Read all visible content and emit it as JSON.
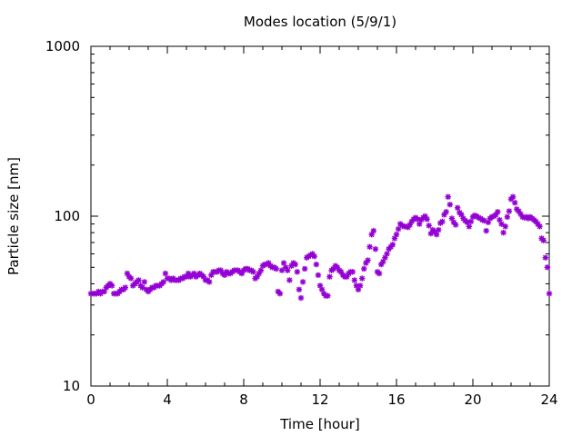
{
  "chart_data": {
    "type": "scatter",
    "title": "Modes location (5/9/1)",
    "xlabel": "Time [hour]",
    "ylabel": "Particle size [nm]",
    "xlim": [
      0,
      24
    ],
    "ylim": [
      10,
      1000
    ],
    "yscale": "log",
    "xticks": [
      0,
      4,
      8,
      12,
      16,
      20,
      24
    ],
    "xtick_labels": [
      "0",
      "4",
      "8",
      "12",
      "16",
      "20",
      "24"
    ],
    "yticks": [
      10,
      100,
      1000
    ],
    "ytick_labels": [
      "10",
      "100",
      "1000"
    ],
    "grid": false,
    "legend": "none",
    "marker_color": "#9400d3",
    "marker": "asterisk",
    "series": [
      {
        "points": [
          [
            0.0,
            35
          ],
          [
            0.1,
            35
          ],
          [
            0.2,
            35
          ],
          [
            0.3,
            35
          ],
          [
            0.4,
            36
          ],
          [
            0.5,
            35
          ],
          [
            0.6,
            36
          ],
          [
            0.7,
            36
          ],
          [
            0.8,
            38
          ],
          [
            0.9,
            39
          ],
          [
            1.0,
            40
          ],
          [
            1.1,
            39
          ],
          [
            1.2,
            35
          ],
          [
            1.3,
            35
          ],
          [
            1.4,
            35
          ],
          [
            1.5,
            36
          ],
          [
            1.6,
            37
          ],
          [
            1.7,
            37
          ],
          [
            1.8,
            38
          ],
          [
            1.9,
            46
          ],
          [
            2.0,
            44
          ],
          [
            2.1,
            43
          ],
          [
            2.2,
            39
          ],
          [
            2.3,
            40
          ],
          [
            2.4,
            41
          ],
          [
            2.5,
            42
          ],
          [
            2.6,
            39
          ],
          [
            2.7,
            38
          ],
          [
            2.8,
            41
          ],
          [
            2.9,
            37
          ],
          [
            3.0,
            36
          ],
          [
            3.1,
            37
          ],
          [
            3.2,
            38
          ],
          [
            3.3,
            38
          ],
          [
            3.4,
            39
          ],
          [
            3.5,
            39
          ],
          [
            3.6,
            39
          ],
          [
            3.7,
            40
          ],
          [
            3.8,
            41
          ],
          [
            3.9,
            46
          ],
          [
            4.0,
            43
          ],
          [
            4.1,
            43
          ],
          [
            4.2,
            42
          ],
          [
            4.3,
            43
          ],
          [
            4.4,
            42
          ],
          [
            4.5,
            42
          ],
          [
            4.6,
            42
          ],
          [
            4.7,
            43
          ],
          [
            4.8,
            43
          ],
          [
            4.9,
            44
          ],
          [
            5.0,
            44
          ],
          [
            5.1,
            46
          ],
          [
            5.2,
            44
          ],
          [
            5.3,
            45
          ],
          [
            5.4,
            46
          ],
          [
            5.5,
            44
          ],
          [
            5.6,
            45
          ],
          [
            5.7,
            46
          ],
          [
            5.8,
            45
          ],
          [
            5.9,
            44
          ],
          [
            6.0,
            42
          ],
          [
            6.1,
            42
          ],
          [
            6.2,
            41
          ],
          [
            6.3,
            45
          ],
          [
            6.4,
            47
          ],
          [
            6.5,
            47
          ],
          [
            6.6,
            47
          ],
          [
            6.7,
            48
          ],
          [
            6.8,
            48
          ],
          [
            6.9,
            46
          ],
          [
            7.0,
            45
          ],
          [
            7.1,
            47
          ],
          [
            7.2,
            46
          ],
          [
            7.3,
            46
          ],
          [
            7.4,
            47
          ],
          [
            7.5,
            48
          ],
          [
            7.6,
            48
          ],
          [
            7.7,
            48
          ],
          [
            7.8,
            47
          ],
          [
            7.9,
            46
          ],
          [
            8.0,
            48
          ],
          [
            8.1,
            49
          ],
          [
            8.2,
            49
          ],
          [
            8.3,
            48
          ],
          [
            8.4,
            48
          ],
          [
            8.5,
            47
          ],
          [
            8.6,
            43
          ],
          [
            8.7,
            44
          ],
          [
            8.8,
            46
          ],
          [
            8.9,
            48
          ],
          [
            9.0,
            51
          ],
          [
            9.1,
            52
          ],
          [
            9.2,
            52
          ],
          [
            9.3,
            53
          ],
          [
            9.4,
            51
          ],
          [
            9.5,
            50
          ],
          [
            9.6,
            50
          ],
          [
            9.7,
            49
          ],
          [
            9.8,
            36
          ],
          [
            9.9,
            35
          ],
          [
            10.0,
            48
          ],
          [
            10.1,
            53
          ],
          [
            10.2,
            50
          ],
          [
            10.3,
            48
          ],
          [
            10.4,
            42
          ],
          [
            10.5,
            51
          ],
          [
            10.6,
            53
          ],
          [
            10.7,
            52
          ],
          [
            10.8,
            47
          ],
          [
            10.9,
            37
          ],
          [
            11.0,
            33
          ],
          [
            11.1,
            41
          ],
          [
            11.2,
            49
          ],
          [
            11.3,
            57
          ],
          [
            11.4,
            58
          ],
          [
            11.5,
            59
          ],
          [
            11.6,
            60
          ],
          [
            11.7,
            58
          ],
          [
            11.8,
            52
          ],
          [
            11.9,
            45
          ],
          [
            12.0,
            39
          ],
          [
            12.1,
            37
          ],
          [
            12.2,
            35
          ],
          [
            12.3,
            34
          ],
          [
            12.4,
            34
          ],
          [
            12.5,
            44
          ],
          [
            12.6,
            48
          ],
          [
            12.7,
            49
          ],
          [
            12.8,
            51
          ],
          [
            12.9,
            50
          ],
          [
            13.0,
            48
          ],
          [
            13.1,
            47
          ],
          [
            13.2,
            45
          ],
          [
            13.3,
            44
          ],
          [
            13.4,
            44
          ],
          [
            13.5,
            46
          ],
          [
            13.6,
            47
          ],
          [
            13.7,
            47
          ],
          [
            13.8,
            42
          ],
          [
            13.9,
            39
          ],
          [
            14.0,
            37
          ],
          [
            14.1,
            39
          ],
          [
            14.2,
            43
          ],
          [
            14.3,
            49
          ],
          [
            14.4,
            53
          ],
          [
            14.5,
            55
          ],
          [
            14.6,
            66
          ],
          [
            14.7,
            78
          ],
          [
            14.8,
            82
          ],
          [
            14.9,
            64
          ],
          [
            15.0,
            47
          ],
          [
            15.1,
            46
          ],
          [
            15.2,
            52
          ],
          [
            15.3,
            54
          ],
          [
            15.4,
            57
          ],
          [
            15.5,
            60
          ],
          [
            15.6,
            64
          ],
          [
            15.7,
            66
          ],
          [
            15.8,
            68
          ],
          [
            15.9,
            74
          ],
          [
            16.0,
            78
          ],
          [
            16.1,
            84
          ],
          [
            16.2,
            90
          ],
          [
            16.3,
            88
          ],
          [
            16.4,
            87
          ],
          [
            16.5,
            87
          ],
          [
            16.6,
            86
          ],
          [
            16.7,
            89
          ],
          [
            16.8,
            93
          ],
          [
            16.9,
            96
          ],
          [
            17.0,
            98
          ],
          [
            17.1,
            96
          ],
          [
            17.2,
            90
          ],
          [
            17.3,
            95
          ],
          [
            17.4,
            98
          ],
          [
            17.5,
            100
          ],
          [
            17.6,
            96
          ],
          [
            17.7,
            88
          ],
          [
            17.8,
            79
          ],
          [
            17.9,
            83
          ],
          [
            18.0,
            81
          ],
          [
            18.1,
            78
          ],
          [
            18.2,
            83
          ],
          [
            18.3,
            91
          ],
          [
            18.4,
            93
          ],
          [
            18.5,
            102
          ],
          [
            18.6,
            106
          ],
          [
            18.7,
            130
          ],
          [
            18.8,
            117
          ],
          [
            18.9,
            97
          ],
          [
            19.0,
            92
          ],
          [
            19.1,
            89
          ],
          [
            19.2,
            112
          ],
          [
            19.3,
            105
          ],
          [
            19.4,
            102
          ],
          [
            19.5,
            97
          ],
          [
            19.6,
            94
          ],
          [
            19.7,
            92
          ],
          [
            19.8,
            87
          ],
          [
            19.9,
            93
          ],
          [
            20.0,
            99
          ],
          [
            20.1,
            101
          ],
          [
            20.2,
            100
          ],
          [
            20.3,
            98
          ],
          [
            20.4,
            97
          ],
          [
            20.5,
            95
          ],
          [
            20.6,
            94
          ],
          [
            20.7,
            82
          ],
          [
            20.8,
            92
          ],
          [
            20.9,
            97
          ],
          [
            21.0,
            99
          ],
          [
            21.1,
            100
          ],
          [
            21.2,
            102
          ],
          [
            21.3,
            106
          ],
          [
            21.4,
            95
          ],
          [
            21.5,
            90
          ],
          [
            21.6,
            80
          ],
          [
            21.7,
            87
          ],
          [
            21.8,
            99
          ],
          [
            21.9,
            107
          ],
          [
            22.0,
            126
          ],
          [
            22.1,
            130
          ],
          [
            22.2,
            120
          ],
          [
            22.3,
            110
          ],
          [
            22.4,
            107
          ],
          [
            22.5,
            103
          ],
          [
            22.6,
            99
          ],
          [
            22.7,
            98
          ],
          [
            22.8,
            99
          ],
          [
            22.9,
            97
          ],
          [
            23.0,
            99
          ],
          [
            23.1,
            97
          ],
          [
            23.2,
            95
          ],
          [
            23.3,
            93
          ],
          [
            23.4,
            90
          ],
          [
            23.5,
            87
          ],
          [
            23.6,
            74
          ],
          [
            23.7,
            72
          ],
          [
            23.8,
            57
          ],
          [
            23.9,
            50
          ],
          [
            24.0,
            35
          ]
        ]
      }
    ]
  }
}
